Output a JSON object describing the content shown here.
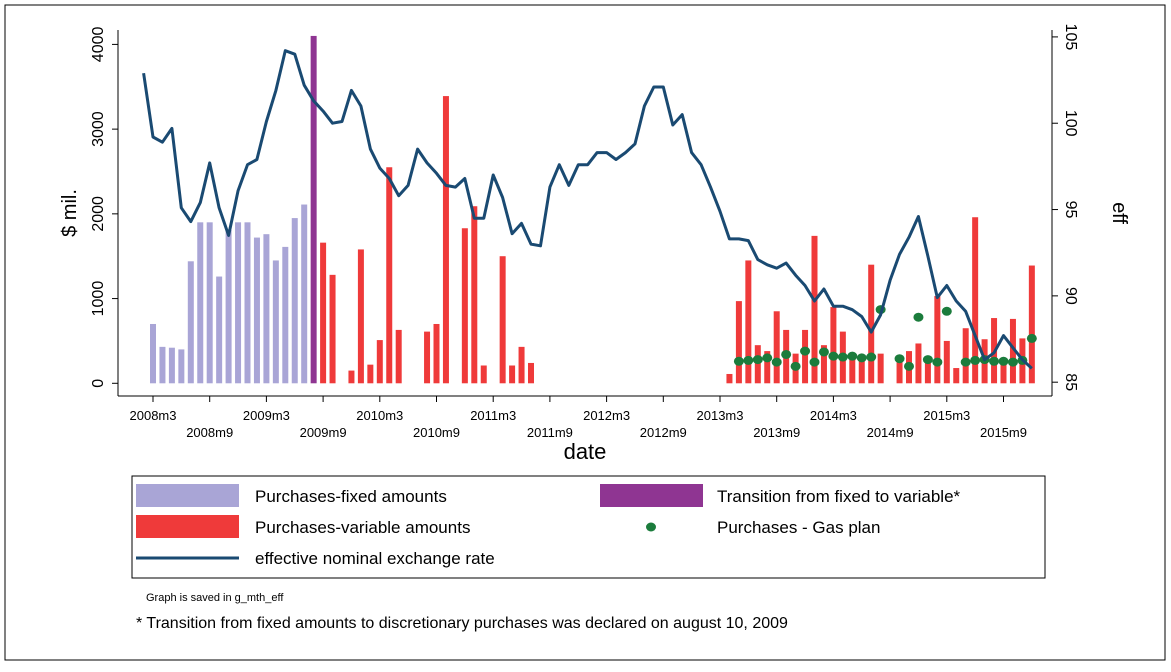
{
  "chart_data": {
    "type": "bar",
    "x_label": "date",
    "y_label": "$ mil.",
    "y2_label": "eff",
    "note": "Graph is saved in g_mth_eff",
    "caption": "* Transition from fixed amounts to discretionary purchases was declared on august 10, 2009",
    "x": [
      "2008m2",
      "2008m3",
      "2008m4",
      "2008m5",
      "2008m6",
      "2008m7",
      "2008m8",
      "2008m9",
      "2008m10",
      "2008m11",
      "2008m12",
      "2009m1",
      "2009m2",
      "2009m3",
      "2009m4",
      "2009m5",
      "2009m6",
      "2009m7",
      "2009m8",
      "2009m9",
      "2009m10",
      "2009m11",
      "2009m12",
      "2010m1",
      "2010m2",
      "2010m3",
      "2010m4",
      "2010m5",
      "2010m6",
      "2010m7",
      "2010m8",
      "2010m9",
      "2010m10",
      "2010m11",
      "2010m12",
      "2011m1",
      "2011m2",
      "2011m3",
      "2011m4",
      "2011m5",
      "2011m6",
      "2011m7",
      "2011m8",
      "2011m9",
      "2011m10",
      "2011m11",
      "2011m12",
      "2012m1",
      "2012m2",
      "2012m3",
      "2012m4",
      "2012m5",
      "2012m6",
      "2012m7",
      "2012m8",
      "2012m9",
      "2012m10",
      "2012m11",
      "2012m12",
      "2013m1",
      "2013m2",
      "2013m3",
      "2013m4",
      "2013m5",
      "2013m6",
      "2013m7",
      "2013m8",
      "2013m9",
      "2013m10",
      "2013m11",
      "2013m12",
      "2014m1",
      "2014m2",
      "2014m3",
      "2014m4",
      "2014m5",
      "2014m6",
      "2014m7",
      "2014m8",
      "2014m9",
      "2014m10",
      "2014m11",
      "2014m12",
      "2015m1",
      "2015m2",
      "2015m3",
      "2015m4",
      "2015m5",
      "2015m6",
      "2015m7",
      "2015m8",
      "2015m9",
      "2015m10",
      "2015m11",
      "2015m12"
    ],
    "xticks": [
      "2008m3",
      "2008m9",
      "2009m3",
      "2009m9",
      "2010m3",
      "2010m9",
      "2011m3",
      "2011m9",
      "2012m3",
      "2012m9",
      "2013m3",
      "2013m9",
      "2014m3",
      "2014m9",
      "2015m3",
      "2015m9"
    ],
    "ylim": [
      -150,
      4170
    ],
    "yticks": [
      0,
      1000,
      2000,
      3000,
      4000
    ],
    "y2lim": [
      84.2,
      105.4
    ],
    "y2ticks": [
      85,
      90,
      95,
      100,
      105
    ],
    "grid": false,
    "series": [
      {
        "name": "Purchases-fixed amounts",
        "type": "bar",
        "color": "#a9a5d6",
        "values": [
          null,
          700,
          430,
          420,
          400,
          1440,
          1900,
          1900,
          1260,
          1810,
          1900,
          1900,
          1720,
          1760,
          1450,
          1610,
          1950,
          2110,
          null,
          null,
          null,
          null,
          null,
          null,
          null,
          null,
          null,
          null,
          null,
          null,
          null,
          null,
          null,
          null,
          null,
          null,
          null,
          null,
          null,
          null,
          null,
          null,
          null,
          null,
          null,
          null,
          null,
          null,
          null,
          null,
          null,
          null,
          null,
          null,
          null,
          null,
          null,
          null,
          null,
          null,
          null,
          null,
          null,
          null,
          null,
          null,
          null,
          null,
          null,
          null,
          null,
          null,
          null,
          null,
          null,
          null,
          null,
          null,
          null,
          null,
          null,
          null,
          null,
          null,
          null,
          null,
          null,
          null,
          null,
          null,
          null,
          null,
          null,
          null,
          null
        ]
      },
      {
        "name": "Transition from fixed to variable*",
        "type": "bar",
        "color": "#8f3592",
        "values": [
          null,
          null,
          null,
          null,
          null,
          null,
          null,
          null,
          null,
          null,
          null,
          null,
          null,
          null,
          null,
          null,
          null,
          null,
          4100,
          null,
          null,
          null,
          null,
          null,
          null,
          null,
          null,
          null,
          null,
          null,
          null,
          null,
          null,
          null,
          null,
          null,
          null,
          null,
          null,
          null,
          null,
          null,
          null,
          null,
          null,
          null,
          null,
          null,
          null,
          null,
          null,
          null,
          null,
          null,
          null,
          null,
          null,
          null,
          null,
          null,
          null,
          null,
          null,
          null,
          null,
          null,
          null,
          null,
          null,
          null,
          null,
          null,
          null,
          null,
          null,
          null,
          null,
          null,
          null,
          null,
          null,
          null,
          null,
          null,
          null,
          null,
          null,
          null,
          null,
          null,
          null,
          null,
          null,
          null,
          null
        ]
      },
      {
        "name": "Purchases-variable amounts",
        "type": "bar",
        "color": "#ef3a3a",
        "values": [
          null,
          null,
          null,
          null,
          null,
          null,
          null,
          null,
          null,
          null,
          null,
          null,
          null,
          null,
          null,
          null,
          null,
          null,
          null,
          1660,
          1280,
          null,
          150,
          1580,
          220,
          510,
          2550,
          630,
          null,
          null,
          610,
          700,
          3390,
          null,
          1830,
          2090,
          210,
          null,
          1500,
          210,
          430,
          240,
          null,
          null,
          null,
          null,
          null,
          null,
          null,
          null,
          null,
          null,
          null,
          null,
          null,
          null,
          null,
          null,
          null,
          null,
          null,
          null,
          110,
          970,
          1450,
          450,
          380,
          850,
          630,
          350,
          630,
          1740,
          450,
          900,
          610,
          350,
          330,
          1400,
          350,
          null,
          250,
          380,
          470,
          300,
          1030,
          500,
          180,
          650,
          1960,
          520,
          770,
          300,
          760,
          530,
          1390
        ]
      },
      {
        "name": "Purchases - Gas plan",
        "type": "scatter",
        "color": "#1b7c3c",
        "values": [
          null,
          null,
          null,
          null,
          null,
          null,
          null,
          null,
          null,
          null,
          null,
          null,
          null,
          null,
          null,
          null,
          null,
          null,
          null,
          null,
          null,
          null,
          null,
          null,
          null,
          null,
          null,
          null,
          null,
          null,
          null,
          null,
          null,
          null,
          null,
          null,
          null,
          null,
          null,
          null,
          null,
          null,
          null,
          null,
          null,
          null,
          null,
          null,
          null,
          null,
          null,
          null,
          null,
          null,
          null,
          null,
          null,
          null,
          null,
          null,
          null,
          null,
          null,
          260,
          270,
          280,
          300,
          250,
          340,
          200,
          380,
          250,
          370,
          320,
          310,
          320,
          300,
          310,
          870,
          null,
          290,
          200,
          780,
          280,
          250,
          850,
          null,
          250,
          270,
          280,
          260,
          260,
          250,
          270,
          530
        ]
      },
      {
        "name": "effective nominal exchange rate",
        "type": "line",
        "axis": "y2",
        "color": "#1a4a72",
        "values": [
          102.9,
          99.2,
          98.9,
          99.7,
          95.1,
          94.3,
          95.4,
          97.7,
          95.1,
          93.5,
          96.1,
          97.6,
          97.9,
          100.1,
          101.9,
          104.2,
          104.0,
          102.2,
          101.3,
          100.7,
          100.0,
          100.1,
          101.9,
          101.0,
          98.5,
          97.4,
          96.8,
          95.8,
          96.4,
          98.5,
          97.7,
          97.1,
          96.4,
          96.3,
          96.8,
          94.5,
          94.5,
          97.0,
          95.7,
          93.6,
          94.2,
          93.0,
          92.9,
          96.3,
          97.6,
          96.4,
          97.6,
          97.6,
          98.3,
          98.3,
          97.9,
          98.3,
          98.8,
          101.0,
          102.1,
          102.1,
          99.9,
          100.5,
          98.3,
          97.6,
          96.3,
          94.9,
          93.3,
          93.3,
          93.2,
          92.1,
          91.8,
          91.6,
          91.9,
          91.2,
          90.6,
          89.7,
          90.4,
          89.4,
          89.4,
          89.2,
          88.8,
          87.9,
          88.9,
          90.9,
          92.4,
          93.4,
          94.6,
          92.3,
          89.9,
          90.6,
          89.7,
          89.1,
          87.7,
          86.3,
          86.7,
          87.7,
          87.0,
          86.3,
          85.8
        ]
      }
    ]
  }
}
